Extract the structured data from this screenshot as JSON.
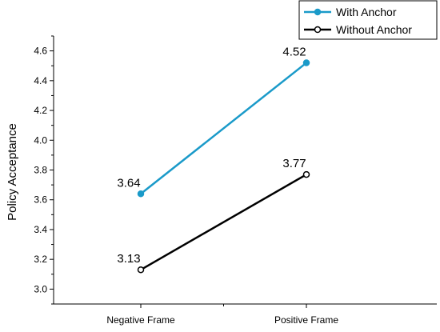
{
  "chart_data": {
    "type": "line",
    "title": "",
    "xlabel": "",
    "ylabel": "Policy Acceptance",
    "categories": [
      "Negative Frame",
      "Positive Frame"
    ],
    "ylim": [
      2.9,
      4.7
    ],
    "yticks": [
      "3.0",
      "3.2",
      "3.4",
      "3.6",
      "3.8",
      "4.0",
      "4.2",
      "4.4",
      "4.6"
    ],
    "grid": false,
    "legend_position": "top-right",
    "series": [
      {
        "name": "With Anchor",
        "values": [
          3.64,
          4.52
        ],
        "labels": [
          "3.64",
          "4.52"
        ],
        "color": "#1a9ac9",
        "marker": "filled-circle"
      },
      {
        "name": "Without Anchor",
        "values": [
          3.13,
          3.77
        ],
        "labels": [
          "3.13",
          "3.77"
        ],
        "color": "#000000",
        "marker": "open-circle"
      }
    ]
  }
}
